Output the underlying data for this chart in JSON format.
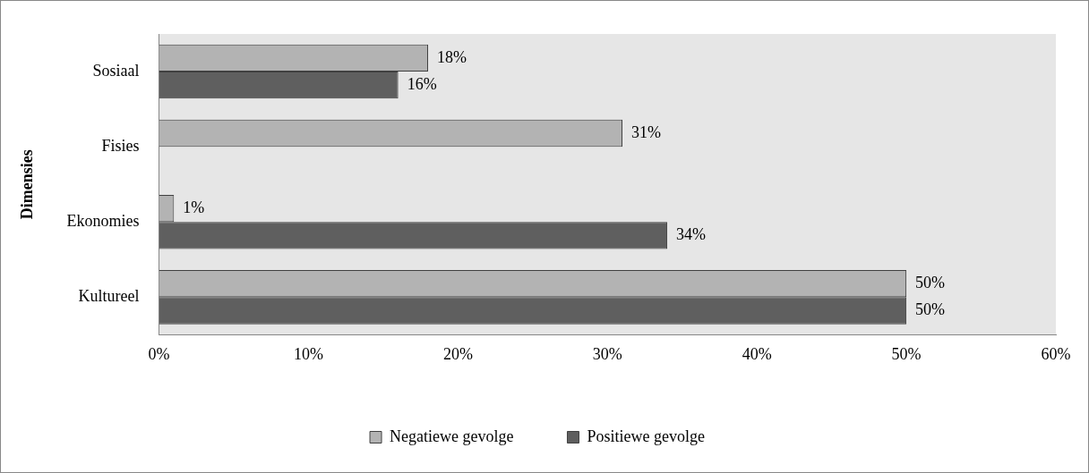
{
  "chart_data": {
    "type": "bar",
    "orientation": "horizontal",
    "ylabel": "Dimensies",
    "categories": [
      "Sosiaal",
      "Fisies",
      "Ekonomies",
      "Kultureel"
    ],
    "series": [
      {
        "name": "Negatiewe gevolge",
        "color": "#b3b3b3",
        "values": [
          18,
          31,
          1,
          50
        ],
        "value_labels": [
          "18%",
          "31%",
          "1%",
          "50%"
        ]
      },
      {
        "name": "Positiewe gevolge",
        "color": "#5f5f5f",
        "values": [
          16,
          null,
          34,
          50
        ],
        "value_labels": [
          "16%",
          null,
          "34%",
          "50%"
        ]
      }
    ],
    "xlim": [
      0,
      60
    ],
    "xticks": [
      {
        "value": 0,
        "label": "0%"
      },
      {
        "value": 10,
        "label": "10%"
      },
      {
        "value": 20,
        "label": "20%"
      },
      {
        "value": 30,
        "label": "30%"
      },
      {
        "value": 40,
        "label": "40%"
      },
      {
        "value": 50,
        "label": "50%"
      },
      {
        "value": 60,
        "label": "60%"
      }
    ],
    "grid": false,
    "legend": "bottom"
  }
}
